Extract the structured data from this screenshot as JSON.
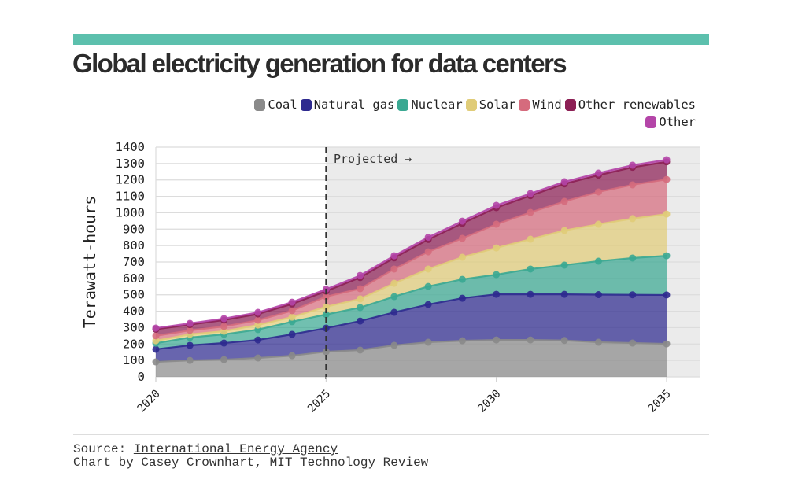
{
  "header": {
    "title": "Global electricity generation for data centers",
    "accent_color": "#5cc0ad"
  },
  "legend": [
    {
      "label": "Coal",
      "color": "#8a8a8a"
    },
    {
      "label": "Natural gas",
      "color": "#2e2a8f"
    },
    {
      "label": "Nuclear",
      "color": "#3aa892"
    },
    {
      "label": "Solar",
      "color": "#e0cc78"
    },
    {
      "label": "Wind",
      "color": "#d56b7d"
    },
    {
      "label": "Other renewables",
      "color": "#8c1f54"
    },
    {
      "label": "Other",
      "color": "#b445a8"
    }
  ],
  "chart_data": {
    "type": "area",
    "stacked": true,
    "title": "Global electricity generation for data centers",
    "xlabel": "",
    "ylabel": "Terawatt-hours",
    "x": [
      2020,
      2021,
      2022,
      2023,
      2024,
      2025,
      2026,
      2027,
      2028,
      2029,
      2030,
      2031,
      2032,
      2033,
      2034,
      2035
    ],
    "xlim": [
      2020,
      2035
    ],
    "ylim": [
      0,
      1400
    ],
    "x_ticks": [
      "2020",
      "2025",
      "2030",
      "2035"
    ],
    "y_ticks": [
      "0",
      "100",
      "200",
      "300",
      "400",
      "500",
      "600",
      "700",
      "800",
      "900",
      "1000",
      "1100",
      "1200",
      "1300",
      "1400"
    ],
    "grid": true,
    "legend_position": "top-right",
    "annotations": [
      {
        "text": "Projected →",
        "x": 2025,
        "note": "dashed vertical line at 2025; shaded projection region 2025–2035"
      }
    ],
    "series": [
      {
        "name": "Coal",
        "color": "#8a8a8a",
        "values": [
          91,
          100,
          105,
          115,
          129,
          153,
          163,
          192,
          211,
          220,
          225,
          225,
          222,
          211,
          206,
          201
        ]
      },
      {
        "name": "Natural gas",
        "color": "#2e2a8f",
        "values": [
          77,
          92,
          101,
          110,
          130,
          144,
          177,
          201,
          230,
          259,
          278,
          278,
          281,
          290,
          294,
          298
        ]
      },
      {
        "name": "Nuclear",
        "color": "#3aa892",
        "values": [
          37,
          48,
          53,
          63,
          77,
          83,
          82,
          96,
          110,
          115,
          120,
          154,
          178,
          204,
          224,
          239
        ]
      },
      {
        "name": "Solar",
        "color": "#e0cc78",
        "values": [
          15,
          19,
          19,
          28,
          28,
          47,
          53,
          81,
          106,
          135,
          163,
          182,
          211,
          225,
          240,
          254
        ]
      },
      {
        "name": "Wind",
        "color": "#d56b7d",
        "values": [
          30,
          24,
          29,
          29,
          39,
          62,
          62,
          87,
          105,
          115,
          144,
          163,
          177,
          197,
          206,
          211
        ]
      },
      {
        "name": "Other renewables",
        "color": "#8c1f54",
        "values": [
          40,
          35,
          39,
          38,
          41,
          33,
          68,
          68,
          75,
          91,
          101,
          102,
          107,
          102,
          107,
          107
        ]
      },
      {
        "name": "Other",
        "color": "#b445a8",
        "values": [
          7,
          8,
          9,
          10,
          11,
          12,
          13,
          13,
          14,
          14,
          14,
          13,
          13,
          13,
          13,
          13
        ]
      }
    ]
  },
  "footer": {
    "source_prefix": "Source: ",
    "source_link": "International Energy Agency",
    "credit": "Chart by Casey Crownhart, MIT Technology Review"
  }
}
